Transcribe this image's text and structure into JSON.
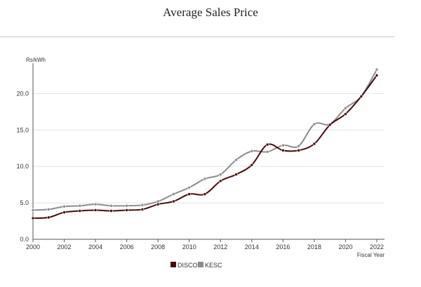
{
  "chart_data": {
    "type": "line",
    "title": "Average Sales Price",
    "ylabel": "Rs/kWh",
    "xlabel": "Fiscal Year",
    "xlim": [
      2000,
      2022
    ],
    "ylim": [
      0,
      23.5
    ],
    "x_ticks": [
      "2000",
      "2002",
      "2004",
      "2006",
      "2008",
      "2010",
      "2012",
      "2014",
      "2016",
      "2018",
      "2020",
      "2022"
    ],
    "y_ticks": [
      "0.0",
      "5.0",
      "10.0",
      "15.0",
      "20.0"
    ],
    "grid": "horizontal",
    "legend_position": "bottom",
    "x": [
      2000,
      2001,
      2002,
      2003,
      2004,
      2005,
      2006,
      2007,
      2008,
      2009,
      2010,
      2011,
      2012,
      2013,
      2014,
      2015,
      2016,
      2017,
      2018,
      2019,
      2020,
      2021,
      2022
    ],
    "series": [
      {
        "name": "DISCOs",
        "color": "#4a0a0a",
        "values": [
          2.9,
          3.0,
          3.7,
          3.9,
          4.0,
          3.9,
          4.0,
          4.1,
          4.8,
          5.2,
          6.2,
          6.2,
          8.0,
          8.9,
          10.2,
          13.0,
          12.2,
          12.2,
          13.1,
          15.7,
          17.2,
          19.6,
          22.5
        ]
      },
      {
        "name": "KESC",
        "color": "#8c8c8c",
        "values": [
          4.0,
          4.1,
          4.5,
          4.6,
          4.8,
          4.6,
          4.6,
          4.7,
          5.2,
          6.2,
          7.1,
          8.3,
          8.9,
          10.9,
          12.1,
          12.0,
          12.9,
          12.8,
          15.8,
          15.8,
          18.0,
          19.6,
          23.3
        ]
      }
    ]
  }
}
